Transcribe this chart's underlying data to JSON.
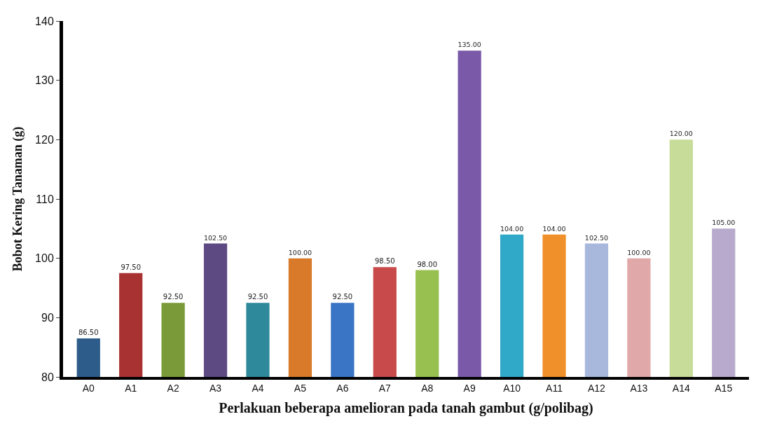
{
  "chart_data": {
    "type": "bar",
    "xlabel": "Perlakuan beberapa amelioran pada tanah gambut (g/polibag)",
    "ylabel": "Bobot Kering Tanaman (g)",
    "categories": [
      "A0",
      "A1",
      "A2",
      "A3",
      "A4",
      "A5",
      "A6",
      "A7",
      "A8",
      "A9",
      "A10",
      "A11",
      "A12",
      "A13",
      "A14",
      "A15"
    ],
    "values": [
      86.5,
      97.5,
      92.5,
      102.5,
      92.5,
      100,
      92.5,
      98.5,
      98,
      135,
      104,
      104,
      102.5,
      100,
      120,
      105
    ],
    "value_labels": [
      "86.50",
      "97.50",
      "92.50",
      "102.50",
      "92.50",
      "100.00",
      "92.50",
      "98.50",
      "98.00",
      "135.00",
      "104.00",
      "104.00",
      "102.50",
      "100.00",
      "120.00",
      "105.00"
    ],
    "colors": [
      "#2e5c8a",
      "#a83232",
      "#7a9a3a",
      "#5e4a82",
      "#2e8a9a",
      "#d87a2a",
      "#3a74c4",
      "#c84a4a",
      "#98c050",
      "#7a5aa8",
      "#30a8c8",
      "#f0902a",
      "#a8b8dc",
      "#e0a8a8",
      "#c8dc9a",
      "#b8aacc"
    ],
    "ylim": [
      80,
      140
    ],
    "yticks": [
      80,
      90,
      100,
      110,
      120,
      130,
      140
    ]
  }
}
